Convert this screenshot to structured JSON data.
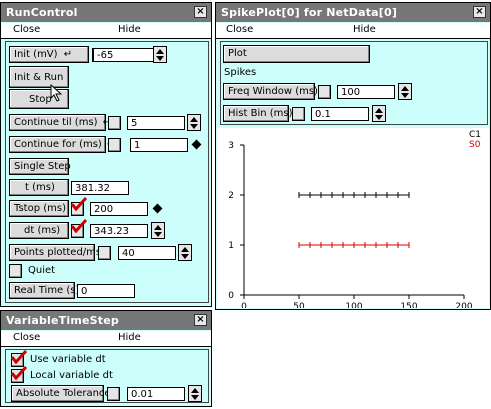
{
  "run_control": {
    "title": "RunControl",
    "close_label": "×",
    "menu_close": "Close",
    "menu_hide": "Hide",
    "init_label": "Init (mV)",
    "init_value": "-65",
    "init_run_label": "Init & Run",
    "stop_label": "Stop",
    "continue_til_label": "Continue til (ms)",
    "continue_til_value": "5",
    "continue_for_label": "Continue for (ms)",
    "continue_for_value": "1",
    "single_step_label": "Single Step",
    "t_label": "t (ms)",
    "t_value": "381.32",
    "tstop_label": "Tstop (ms)",
    "tstop_value": "200",
    "dt_label": "dt (ms)",
    "dt_value": "343.23",
    "points_label": "Points plotted/ms",
    "points_value": "40",
    "quiet_label": "Quiet",
    "realtime_label": "Real Time (s)",
    "realtime_value": "0"
  },
  "variable_time_step": {
    "title": "VariableTimeStep",
    "close_label": "×",
    "menu_close": "Close",
    "menu_hide": "Hide",
    "use_variable_dt_label": "Use variable dt",
    "use_variable_dt_checked": true,
    "local_variable_dt_label": "Local variable dt",
    "local_variable_dt_checked": true,
    "abs_tol_label": "Absolute Tolerance",
    "abs_tol_value": "0.01"
  },
  "spike_plot": {
    "title": "SpikePlot[0] for NetData[0]",
    "close_label": "×",
    "menu_close": "Close",
    "menu_hide": "Hide",
    "plot_label": "Plot",
    "spikes_label": "Spikes",
    "freq_window_label": "Freq Window (ms)",
    "freq_window_value": "100",
    "hist_bin_label": "Hist Bin (ms)",
    "hist_bin_value": "0.1"
  },
  "colors": {
    "panel_bg": "#ccfffc",
    "title_bar": "#777777",
    "series_c1": "#000000",
    "series_s0": "#d40000",
    "check_red": "#cc0000"
  },
  "chart_data": {
    "type": "scatter",
    "xlim": [
      0,
      200
    ],
    "ylim": [
      0,
      3
    ],
    "xticks": [
      "0",
      "50",
      "100",
      "150",
      "200"
    ],
    "yticks": [
      "0",
      "1",
      "2",
      "3"
    ],
    "series": [
      {
        "name": "C1",
        "color": "#000000",
        "y": 2,
        "x": [
          50,
          60,
          70,
          80,
          90,
          100,
          110,
          120,
          130,
          140,
          150
        ]
      },
      {
        "name": "S0",
        "color": "#d40000",
        "y": 1,
        "x": [
          50,
          60,
          70,
          80,
          90,
          100,
          110,
          120,
          130,
          140,
          150
        ]
      }
    ]
  }
}
